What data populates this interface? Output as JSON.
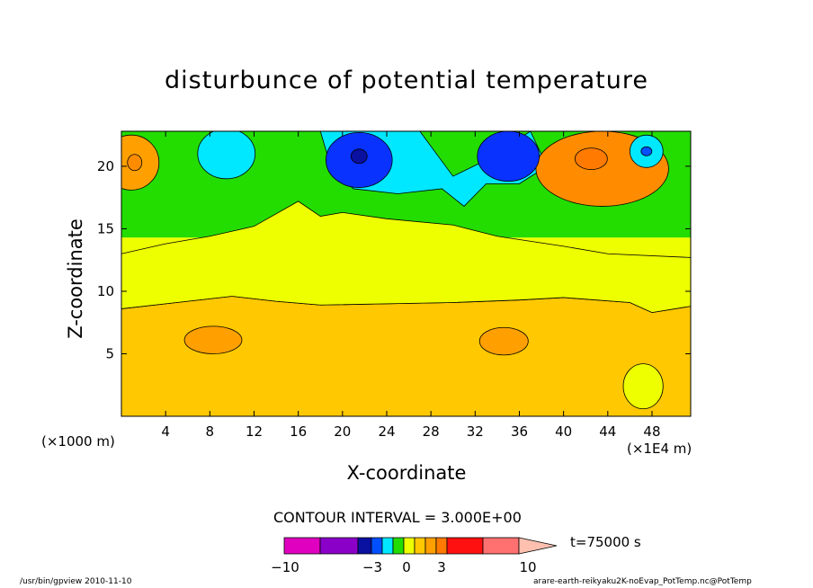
{
  "chart_data": {
    "type": "contour",
    "title": "disturbunce of potential temperature",
    "xlabel": "X-coordinate",
    "ylabel": "Z-coordinate",
    "x_unit_label": "(×1000 m)",
    "x_scale_label": "(×1E4 m)",
    "x_ticks": [
      "4",
      "8",
      "12",
      "16",
      "20",
      "24",
      "28",
      "32",
      "36",
      "40",
      "44",
      "48"
    ],
    "y_ticks": [
      "5",
      "10",
      "15",
      "20"
    ],
    "xlim": [
      0,
      51.5
    ],
    "ylim": [
      0,
      22.8
    ],
    "contour_interval_label": "CONTOUR INTERVAL = 3.000E+00",
    "time_label": "t=75000 s",
    "layers": [
      {
        "z_from": 0,
        "z_to": 9.2,
        "level": "1.5 to 3",
        "color": "#ffc800"
      },
      {
        "z_from": 9.2,
        "z_to": 14.3,
        "level": "0 to 1.5",
        "color": "#eeff00"
      },
      {
        "z_from": 14.3,
        "z_to": 22.8,
        "level": "-1 to 0",
        "color": "#23dd00"
      }
    ],
    "features": [
      {
        "x": 1.5,
        "z": 20.3,
        "level": "warm",
        "color": "#ffa000"
      },
      {
        "x": 8.3,
        "z": 6.1,
        "level": "warm",
        "color": "#ffa000"
      },
      {
        "x": 34.8,
        "z": 6.0,
        "level": "warm",
        "color": "#ffa000"
      },
      {
        "x": 42.5,
        "z": 20.5,
        "level": "warm",
        "color": "#ff8c00"
      },
      {
        "x": 47.3,
        "z": 2.3,
        "level": "slightly warm",
        "color": "#eeff00"
      },
      {
        "x": 9.5,
        "z": 21.0,
        "level": "cool",
        "color": "#00e8ff"
      },
      {
        "x": 21.5,
        "z": 20.5,
        "level": "cold",
        "color": "#0a32ff"
      },
      {
        "x": 35.0,
        "z": 20.8,
        "level": "cold",
        "color": "#0a32ff"
      },
      {
        "x": 47.5,
        "z": 21.2,
        "level": "cool",
        "color": "#00e8ff"
      }
    ],
    "colorbar": {
      "colors": [
        "#e000c0",
        "#8a00c8",
        "#0a10a0",
        "#0050ff",
        "#00e8ff",
        "#23dd00",
        "#eeff00",
        "#ffc800",
        "#ffa000",
        "#ff7a00",
        "#ff1010",
        "#ff7070",
        "#ffc0b0"
      ],
      "tick_labels": [
        "−10",
        "−3",
        "0",
        "3",
        "10"
      ]
    }
  },
  "footer": {
    "left": "/usr/bin/gpview   2010-11-10",
    "right": "arare-earth-reikyaku2K-noEvap_PotTemp.nc@PotTemp"
  }
}
